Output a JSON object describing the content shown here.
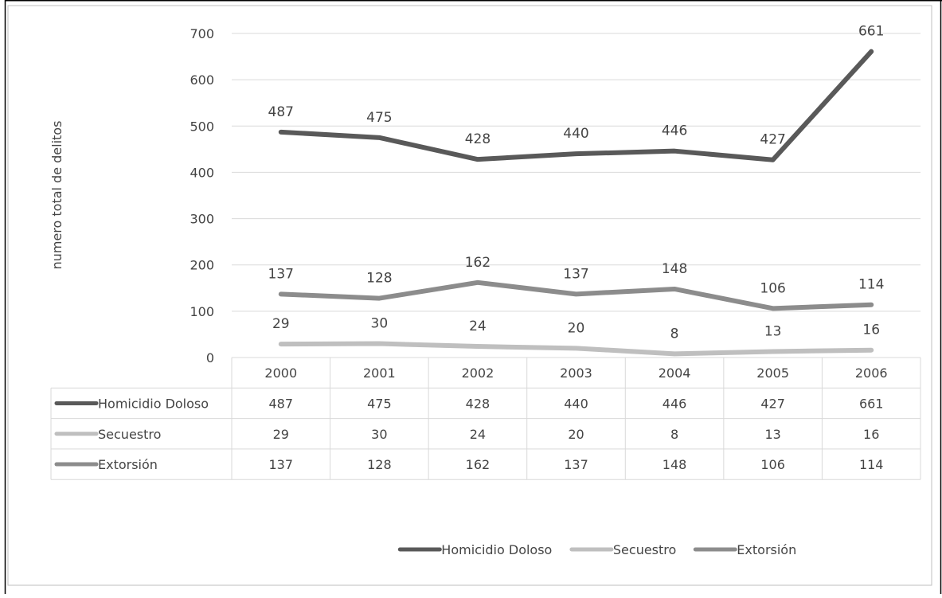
{
  "chart_data": {
    "type": "line",
    "title": "",
    "xlabel": "",
    "ylabel": "numero total de delitos",
    "categories": [
      "2000",
      "2001",
      "2002",
      "2003",
      "2004",
      "2005",
      "2006"
    ],
    "ylim": [
      0,
      700
    ],
    "yticks": [
      0,
      100,
      200,
      300,
      400,
      500,
      600,
      700
    ],
    "grid": true,
    "legend": "bottom",
    "data_table": true,
    "series": [
      {
        "name": "Homicidio Doloso",
        "values": [
          487,
          475,
          428,
          440,
          446,
          427,
          661
        ],
        "color": "#595959"
      },
      {
        "name": "Secuestro",
        "values": [
          29,
          30,
          24,
          20,
          8,
          13,
          16
        ],
        "color": "#bfbfbf"
      },
      {
        "name": "Extorsión",
        "values": [
          137,
          128,
          162,
          137,
          148,
          106,
          114
        ],
        "color": "#8c8c8c"
      }
    ]
  }
}
